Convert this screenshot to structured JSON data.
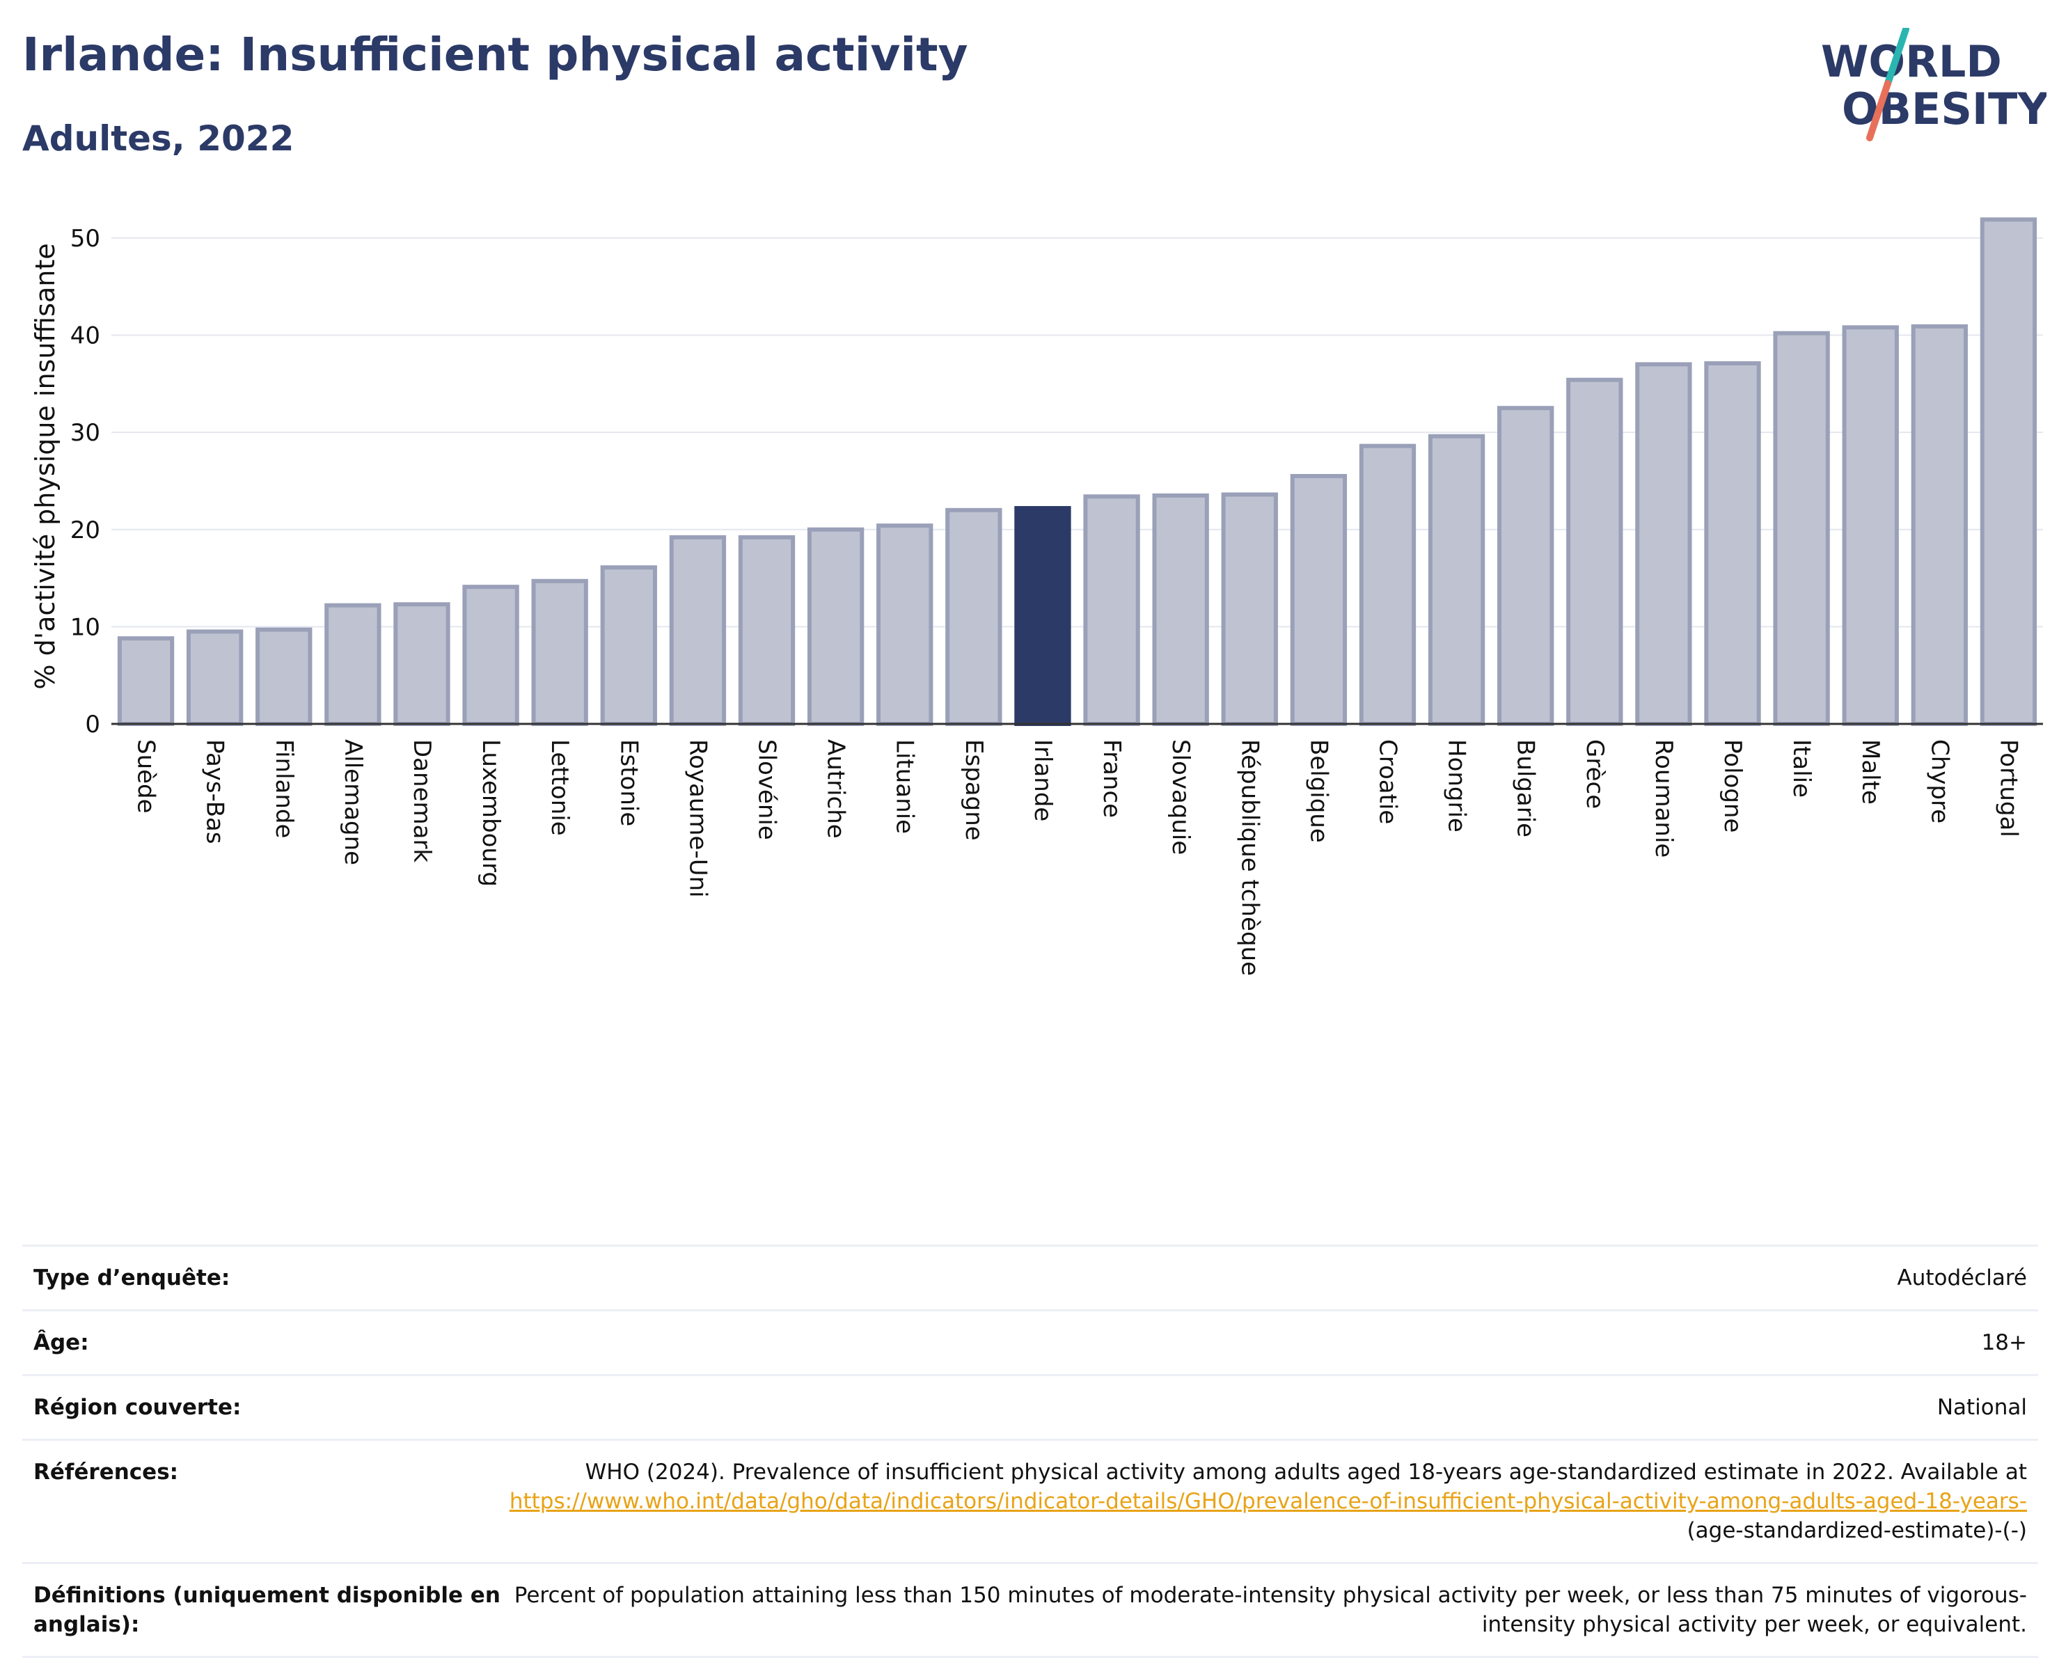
{
  "header": {
    "title": "Irlande: Insufficient physical activity",
    "subtitle": "Adultes, 2022"
  },
  "logo": {
    "line1": "WORLD",
    "line2": "OBESITY"
  },
  "colors": {
    "highlight": "#2b3a67",
    "bar_fill": "#bfc3d1",
    "bar_stroke": "#9aa0b8",
    "title": "#2b3a67",
    "logo_slash_teal": "#2bb5b0",
    "logo_slash_coral": "#e8705a",
    "link": "#e8a317"
  },
  "chart_data": {
    "type": "bar",
    "ylabel": "% d'activité physique insuffisante",
    "ylim": [
      0,
      53
    ],
    "yticks": [
      0,
      10,
      20,
      30,
      40,
      50
    ],
    "grid": true,
    "highlight": "Irlande",
    "categories": [
      "Suède",
      "Pays-Bas",
      "Finlande",
      "Allemagne",
      "Danemark",
      "Luxembourg",
      "Lettonie",
      "Estonie",
      "Royaume-Uni",
      "Slovénie",
      "Autriche",
      "Lituanie",
      "Espagne",
      "Irlande",
      "France",
      "Slovaquie",
      "République tchèque",
      "Belgique",
      "Croatie",
      "Hongrie",
      "Bulgarie",
      "Grèce",
      "Roumanie",
      "Pologne",
      "Italie",
      "Malte",
      "Chypre",
      "Portugal"
    ],
    "values": [
      8.8,
      9.5,
      9.7,
      12.2,
      12.3,
      14.1,
      14.7,
      16.1,
      19.2,
      19.2,
      20.0,
      20.4,
      22.0,
      22.2,
      23.4,
      23.5,
      23.6,
      25.5,
      28.6,
      29.6,
      32.5,
      35.4,
      37.0,
      37.1,
      40.2,
      40.8,
      40.9,
      51.9
    ]
  },
  "info": {
    "rows": [
      {
        "label": "Type d’enquête:",
        "value": "Autodéclaré"
      },
      {
        "label": "Âge:",
        "value": "18+"
      },
      {
        "label": "Région couverte:",
        "value": "National"
      }
    ],
    "references": {
      "label": "Références:",
      "text": "WHO (2024). Prevalence of insufficient physical activity among adults aged 18-years age-standardized estimate in 2022. Available at",
      "link": "https://www.who.int/data/gho/data/indicators/indicator-details/GHO/prevalence-of-insufficient-physical-activity-among-adults-aged-18-years-",
      "tail": "(age-standardized-estimate)-(-)"
    },
    "definitions": {
      "label": "Définitions (uniquement disponible en anglais):",
      "value": "Percent of population attaining less than 150 minutes of moderate-intensity physical activity per week, or less than 75 minutes of vigorous-intensity physical activity per week, or equivalent."
    }
  }
}
